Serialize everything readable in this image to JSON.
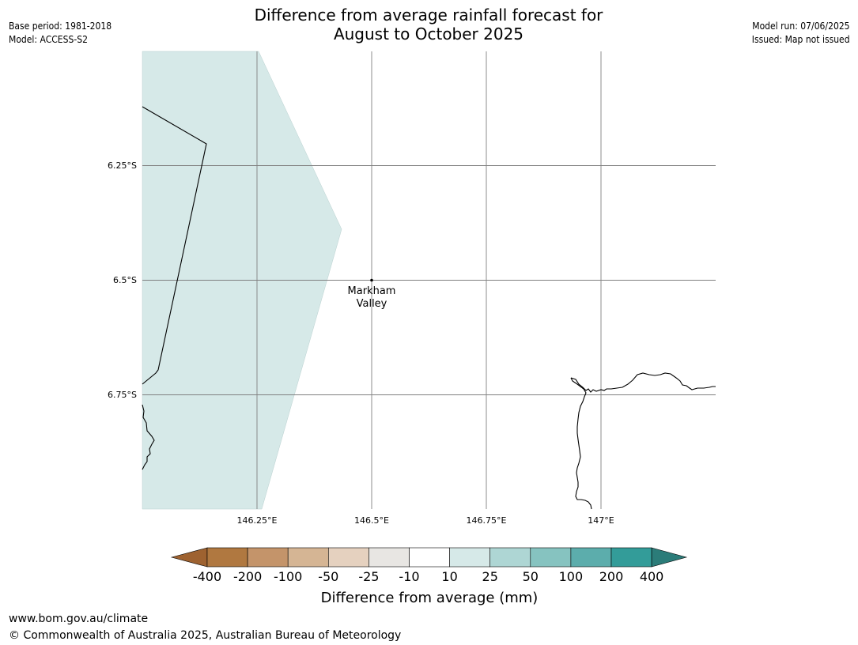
{
  "title": {
    "line1": "Difference from average rainfall forecast for",
    "line2": "August to October 2025"
  },
  "meta_left": {
    "base_period": "Base period: 1981-2018",
    "model": "Model: ACCESS-S2"
  },
  "meta_right": {
    "model_run": "Model run: 07/06/2025",
    "issued": "Issued: Map not issued"
  },
  "map": {
    "lat_labels": [
      "6.25°S",
      "6.5°S",
      "6.75°S"
    ],
    "lon_labels": [
      "146.25°E",
      "146.5°E",
      "146.75°E",
      "147°E"
    ],
    "place": {
      "name_line1": "Markham",
      "name_line2": "Valley"
    },
    "fill_color": "#d6e9e8",
    "gridline_color": "#808080",
    "coastline_color": "#000000"
  },
  "legend": {
    "labels": [
      "-400",
      "-200",
      "-100",
      "-50",
      "-25",
      "-10",
      "10",
      "25",
      "50",
      "100",
      "200",
      "400"
    ],
    "colors": [
      "#9e6230",
      "#b07840",
      "#c4946a",
      "#d5b594",
      "#e5d1bf",
      "#e8e6e3",
      "#ffffff",
      "#d6e9e8",
      "#aed6d4",
      "#86c3c0",
      "#5cadac",
      "#339c99",
      "#2b7c79"
    ],
    "title": "Difference from average (mm)"
  },
  "footer": {
    "url": "www.bom.gov.au/climate",
    "copyright": "© Commonwealth of Australia 2025, Australian Bureau of Meteorology"
  }
}
